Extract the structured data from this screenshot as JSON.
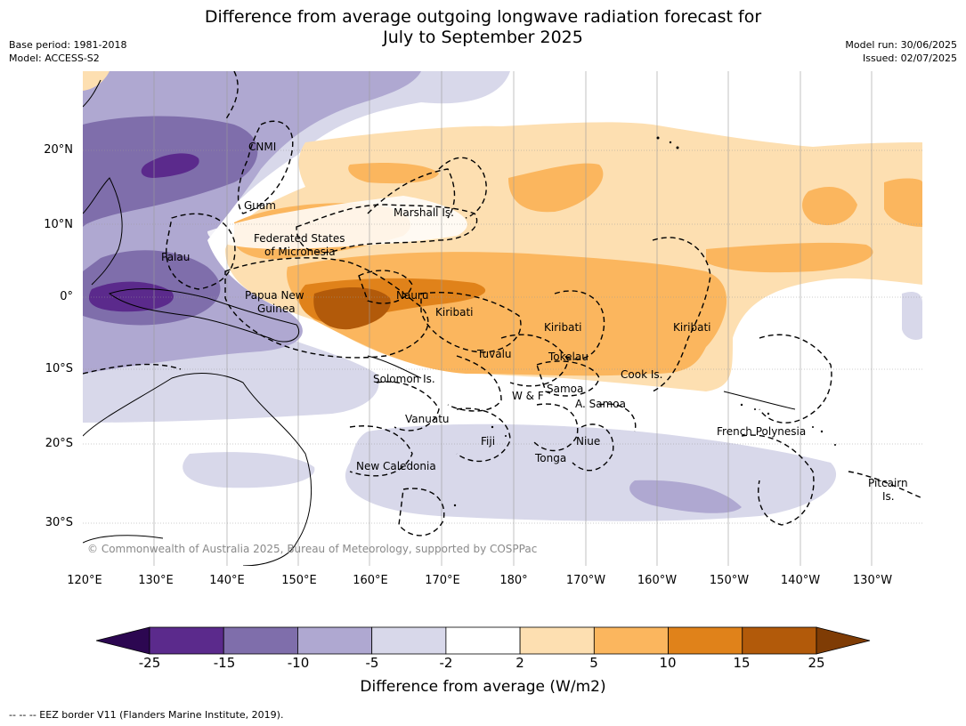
{
  "title": {
    "line1": "Difference from average outgoing longwave radiation forecast for",
    "line2": "July to September 2025"
  },
  "meta": {
    "base_period": "Base period: 1981-2018",
    "model": "Model: ACCESS-S2",
    "model_run": "Model run: 30/06/2025",
    "issued": "Issued: 02/07/2025"
  },
  "axes": {
    "lat_ticks": [
      "20°N",
      "10°N",
      "0°",
      "10°S",
      "20°S",
      "30°S"
    ],
    "lon_ticks": [
      "120°E",
      "130°E",
      "140°E",
      "150°E",
      "160°E",
      "170°E",
      "180°",
      "170°W",
      "160°W",
      "150°W",
      "140°W",
      "130°W"
    ]
  },
  "map_labels": {
    "cnmi": "CNMI",
    "guam": "Guam",
    "marshall": "Marshall Is.",
    "fsm1": "Federated States",
    "fsm2": "of Micronesia",
    "palau": "Palau",
    "png1": "Papua New",
    "png2": "Guinea",
    "nauru": "Nauru",
    "kiribati_w": "Kiribati",
    "kiribati_c": "Kiribati",
    "kiribati_e": "Kiribati",
    "tuvalu": "Tuvalu",
    "tokelau": "Tokelau",
    "cook": "Cook Is.",
    "solomon": "Solomon Is.",
    "wf": "W & F",
    "samoa": "Samoa",
    "asamoa": "A. Samoa",
    "vanuatu": "Vanuatu",
    "fiji": "Fiji",
    "niue": "Niue",
    "tonga": "Tonga",
    "frpoly": "French Polynesia",
    "newcal": "New Caledonia",
    "pitcairn1": "Pitcairn",
    "pitcairn2": "Is."
  },
  "copyright": "© Commonwealth of Australia 2025, Bureau of Meteorology, supported by COSPPac",
  "colorbar": {
    "title": "Difference from average (W/m2)",
    "ticks": [
      "-25",
      "-15",
      "-10",
      "-5",
      "-2",
      "2",
      "5",
      "10",
      "15",
      "25"
    ],
    "colors": [
      "#5b2a8c",
      "#7f6eab",
      "#afa8d1",
      "#d8d8ea",
      "#ffffff",
      "#fddfb1",
      "#fbb65e",
      "#e0821a",
      "#b25a0a"
    ],
    "min_extend_color": "#2c0751",
    "max_extend_color": "#7f3c05"
  },
  "footer": "--  --  -- EEZ border V11 (Flanders Marine Institute, 2019)."
}
